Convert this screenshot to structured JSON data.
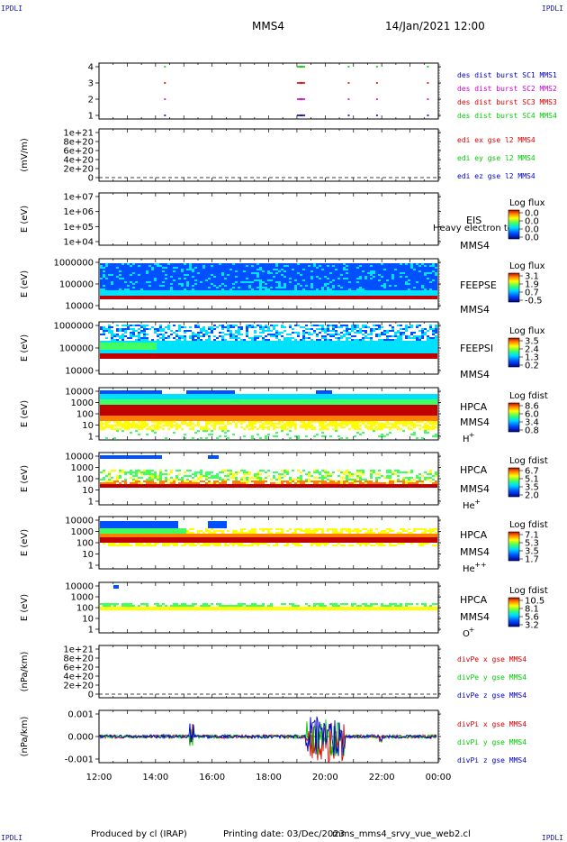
{
  "header": {
    "spacecraft": "MMS4",
    "datetime": "14/Jan/2021 12:00",
    "corner_tl": "IPDLI",
    "corner_tr": "IPDLI",
    "corner_bl": "IPDLI",
    "corner_br": "IPDLI"
  },
  "footer": {
    "produced_by": "Produced by cl (IRAP)",
    "printing_date": "Printing date: 03/Dec/2023",
    "script": "mms_mms4_srvy_vue_web2.cl"
  },
  "x_axis": {
    "ticks": [
      "12:00",
      "14:00",
      "16:00",
      "18:00",
      "20:00",
      "22:00",
      "00:00"
    ],
    "range_hours": [
      12,
      24
    ]
  },
  "colors": {
    "mms1": "#0000c8",
    "mms2": "#cc00cc",
    "mms3": "#dd0000",
    "mms4": "#00cc00",
    "x_comp": "#dd0000",
    "y_comp": "#00cc00",
    "z_comp": "#0000c8"
  },
  "chart_data": [
    {
      "type": "scatter",
      "name": "burst",
      "yticks": [
        "4",
        "3",
        "2",
        "1"
      ],
      "legend": [
        {
          "text": "des dist burst SC1 MMS1",
          "color": "#0000c8"
        },
        {
          "text": "des dist burst SC2 MMS2",
          "color": "#cc00cc"
        },
        {
          "text": "des dist burst SC3 MMS3",
          "color": "#dd0000"
        },
        {
          "text": "des dist burst SC4 MMS4",
          "color": "#00cc00"
        }
      ],
      "burst_times": [
        14.3,
        19.0,
        19.1,
        20.8,
        21.8,
        23.6
      ]
    },
    {
      "type": "line",
      "name": "edi",
      "ylabel": "(mV/m)",
      "yticks": [
        "1e+21",
        "8e+20",
        "6e+20",
        "4e+20",
        "2e+20",
        "0"
      ],
      "legend": [
        {
          "text": "edi ex gse l2 MMS4",
          "color": "#dd0000"
        },
        {
          "text": "edi ey gse l2 MMS4",
          "color": "#00cc00"
        },
        {
          "text": "edi ez gse l2 MMS4",
          "color": "#0000c8"
        }
      ]
    },
    {
      "type": "heatmap",
      "name": "eis",
      "ylabel": "E (eV)",
      "yticks": [
        "1e+07",
        "1e+06",
        "1e+05",
        "1e+04"
      ],
      "instrument": "EIS",
      "species": "Heavy electron to",
      "sc": "MMS4",
      "cbar_title": "Log flux",
      "cbar_ticks": [
        "0.0",
        "0.0",
        "0.0",
        "0.0"
      ]
    },
    {
      "type": "heatmap",
      "name": "feepse",
      "ylabel": "E (eV)",
      "yticks": [
        "1000000",
        "100000",
        "10000"
      ],
      "instrument": "FEEPSE",
      "sc": "MMS4",
      "cbar_title": "Log flux",
      "cbar_ticks": [
        "3.1",
        "1.9",
        "0.7",
        "-0.5"
      ]
    },
    {
      "type": "heatmap",
      "name": "feepsi",
      "ylabel": "E (eV)",
      "yticks": [
        "1000000",
        "100000",
        "10000"
      ],
      "instrument": "FEEPSI",
      "sc": "MMS4",
      "cbar_title": "Log flux",
      "cbar_ticks": [
        "3.5",
        "2.4",
        "1.3",
        "0.2"
      ]
    },
    {
      "type": "heatmap",
      "name": "hpca_h",
      "ylabel": "E (eV)",
      "yticks": [
        "10000",
        "1000",
        "100",
        "10",
        "1"
      ],
      "instrument": "HPCA",
      "sc": "MMS4",
      "species": "H",
      "species_sup": "+",
      "cbar_title": "Log fdist",
      "cbar_ticks": [
        "8.6",
        "6.0",
        "3.4",
        "0.8"
      ]
    },
    {
      "type": "heatmap",
      "name": "hpca_he1",
      "ylabel": "E (eV)",
      "yticks": [
        "10000",
        "1000",
        "100",
        "10",
        "1"
      ],
      "instrument": "HPCA",
      "sc": "MMS4",
      "species": "He",
      "species_sup": "+",
      "cbar_title": "Log fdist",
      "cbar_ticks": [
        "6.7",
        "5.1",
        "3.5",
        "2.0"
      ]
    },
    {
      "type": "heatmap",
      "name": "hpca_he2",
      "ylabel": "E (eV)",
      "yticks": [
        "10000",
        "1000",
        "100",
        "10",
        "1"
      ],
      "instrument": "HPCA",
      "sc": "MMS4",
      "species": "He",
      "species_sup": "++",
      "cbar_title": "Log fdist",
      "cbar_ticks": [
        "7.1",
        "5.3",
        "3.5",
        "1.7"
      ]
    },
    {
      "type": "heatmap",
      "name": "hpca_o",
      "ylabel": "E (eV)",
      "yticks": [
        "10000",
        "1000",
        "100",
        "10",
        "1"
      ],
      "instrument": "HPCA",
      "sc": "MMS4",
      "species": "O",
      "species_sup": "+",
      "cbar_title": "Log fdist",
      "cbar_ticks": [
        "10.5",
        "8.1",
        "5.6",
        "3.2"
      ]
    },
    {
      "type": "line",
      "name": "divpe",
      "ylabel": "(nPa/km)",
      "yticks": [
        "1e+21",
        "8e+20",
        "6e+20",
        "4e+20",
        "2e+20",
        "0"
      ],
      "legend": [
        {
          "text": "divPe x gse MMS4",
          "color": "#dd0000"
        },
        {
          "text": "divPe y gse MMS4",
          "color": "#00cc00"
        },
        {
          "text": "divPe z gse MMS4",
          "color": "#0000c8"
        }
      ]
    },
    {
      "type": "line",
      "name": "divpi",
      "ylabel": "(nPa/km)",
      "yticks": [
        "0.001",
        "0.000",
        "-0.001"
      ],
      "ylim": [
        -0.0015,
        0.0015
      ],
      "legend": [
        {
          "text": "divPi x gse MMS4",
          "color": "#dd0000"
        },
        {
          "text": "divPi y gse MMS4",
          "color": "#00cc00"
        },
        {
          "text": "divPi z gse MMS4",
          "color": "#0000c8"
        }
      ]
    }
  ]
}
